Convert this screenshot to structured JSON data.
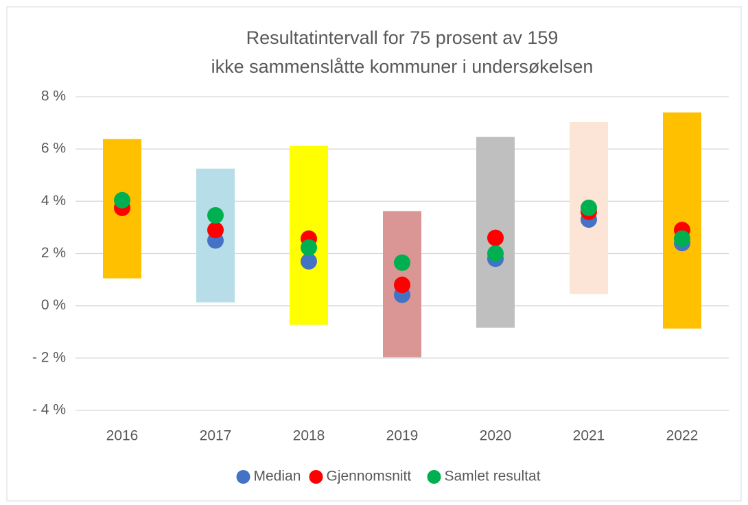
{
  "chart_data": {
    "type": "floating_bar",
    "title": [
      "Resultatintervall for 75 prosent av 159",
      "ikke sammenslåtte kommuner i undersøkelsen"
    ],
    "categories": [
      "2016",
      "2017",
      "2018",
      "2019",
      "2020",
      "2021",
      "2022"
    ],
    "ranges": {
      "low": [
        1.05,
        0.13,
        -0.73,
        -1.97,
        -0.84,
        0.45,
        -0.87
      ],
      "high": [
        6.38,
        5.25,
        6.12,
        3.62,
        6.46,
        7.03,
        7.4
      ],
      "colors": [
        "#ffc000",
        "#b7dee8",
        "#ffff00",
        "#d99694",
        "#bfbfbf",
        "#fce4d6",
        "#ffc000"
      ]
    },
    "series": [
      {
        "name": "Median",
        "color": "#4472c4",
        "values": [
          3.75,
          2.5,
          1.7,
          0.42,
          1.8,
          3.3,
          2.4
        ]
      },
      {
        "name": "Gjennomsnitt",
        "color": "#ff0000",
        "values": [
          3.75,
          2.9,
          2.57,
          0.8,
          2.6,
          3.6,
          2.9
        ]
      },
      {
        "name": "Samlet resultat",
        "color": "#00b050",
        "values": [
          4.04,
          3.46,
          2.23,
          1.65,
          2.0,
          3.75,
          2.57
        ]
      }
    ],
    "ylim": [
      -4,
      8
    ],
    "yticks": [
      {
        "value": -4,
        "label": "- 4 %"
      },
      {
        "value": -2,
        "label": "- 2 %"
      },
      {
        "value": 0,
        "label": "0 %"
      },
      {
        "value": 2,
        "label": "2 %"
      },
      {
        "value": 4,
        "label": "4 %"
      },
      {
        "value": 6,
        "label": "6 %"
      },
      {
        "value": 8,
        "label": "8 %"
      }
    ],
    "grid": true,
    "legend": "bottom"
  }
}
